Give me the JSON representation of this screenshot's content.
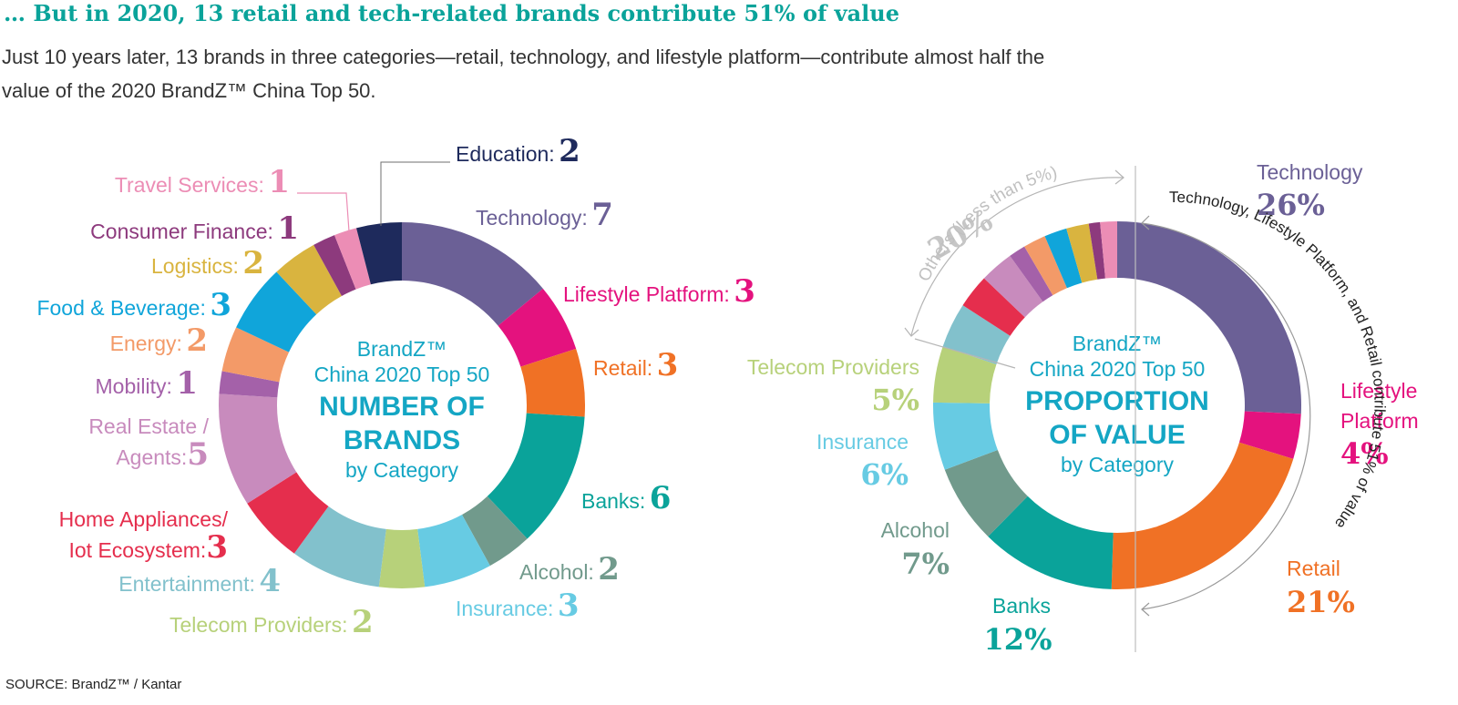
{
  "header": {
    "title": "… But in 2020, 13 retail and tech-related brands contribute 51% of value",
    "subtitle": "Just 10 years later, 13 brands in three categories—retail, technology, and lifestyle platform—contribute almost half the value of the 2020 BrandZ™ China Top 50."
  },
  "footer": {
    "source": "SOURCE: BrandZ™ / Kantar"
  },
  "chart_data": [
    {
      "type": "pie",
      "center": {
        "line1": "BrandZ™",
        "line2": "China 2020 Top 50",
        "line3": "NUMBER OF",
        "line4": "BRANDS",
        "line5": "by Category"
      },
      "series": [
        {
          "name": "Technology",
          "value": 7,
          "label": "Technology:",
          "display": "7",
          "color": "#6b6096"
        },
        {
          "name": "Lifestyle Platform",
          "value": 3,
          "label": "Lifestyle Platform:",
          "display": "3",
          "color": "#e4127e"
        },
        {
          "name": "Retail",
          "value": 3,
          "label": "Retail:",
          "display": "3",
          "color": "#f07125"
        },
        {
          "name": "Banks",
          "value": 6,
          "label": "Banks:",
          "display": "6",
          "color": "#0aa39a"
        },
        {
          "name": "Alcohol",
          "value": 2,
          "label": "Alcohol:",
          "display": "2",
          "color": "#719a8c"
        },
        {
          "name": "Insurance",
          "value": 3,
          "label": "Insurance:",
          "display": "3",
          "color": "#67cbe3"
        },
        {
          "name": "Telecom Providers",
          "value": 2,
          "label": "Telecom Providers:",
          "display": "2",
          "color": "#b7d17a"
        },
        {
          "name": "Entertainment",
          "value": 4,
          "label": "Entertainment:",
          "display": "4",
          "color": "#82c1cc"
        },
        {
          "name": "Home Appliances/ Iot Ecosystem",
          "value": 3,
          "label": "Home Appliances/",
          "label2": "Iot Ecosystem:",
          "display": "3",
          "color": "#e52e4d"
        },
        {
          "name": "Real Estate / Agents",
          "value": 5,
          "label": "Real Estate /",
          "label2": "Agents:",
          "display": "5",
          "color": "#c88bbd"
        },
        {
          "name": "Mobility",
          "value": 1,
          "label": "Mobility:",
          "display": "1",
          "color": "#a461a9"
        },
        {
          "name": "Energy",
          "value": 2,
          "label": "Energy:",
          "display": "2",
          "color": "#f39a68"
        },
        {
          "name": "Food & Beverage",
          "value": 3,
          "label": "Food & Beverage:",
          "display": "3",
          "color": "#10a5da"
        },
        {
          "name": "Logistics",
          "value": 2,
          "label": "Logistics:",
          "display": "2",
          "color": "#d9b43f"
        },
        {
          "name": "Consumer Finance",
          "value": 1,
          "label": "Consumer Finance:",
          "display": "1",
          "color": "#8d3a7d"
        },
        {
          "name": "Travel Services",
          "value": 1,
          "label": "Travel Services:",
          "display": "1",
          "color": "#ec8db5"
        },
        {
          "name": "Education",
          "value": 2,
          "label": "Education:",
          "display": "2",
          "color": "#1e2a5c"
        }
      ]
    },
    {
      "type": "pie",
      "center": {
        "line1": "BrandZ™",
        "line2": "China 2020 Top 50",
        "line3": "PROPORTION",
        "line4": "OF VALUE",
        "line5": "by Category"
      },
      "series": [
        {
          "name": "Technology",
          "value": 26,
          "label": "Technology",
          "display": "26%",
          "color": "#6b6096"
        },
        {
          "name": "Lifestyle Platform",
          "value": 4,
          "label": "Lifestyle",
          "label2": "Platform",
          "display": "4%",
          "color": "#e4127e"
        },
        {
          "name": "Retail",
          "value": 21,
          "label": "Retail",
          "display": "21%",
          "color": "#f07125"
        },
        {
          "name": "Banks",
          "value": 12,
          "label": "Banks",
          "display": "12%",
          "color": "#0aa39a"
        },
        {
          "name": "Alcohol",
          "value": 7,
          "label": "Alcohol",
          "display": "7%",
          "color": "#719a8c"
        },
        {
          "name": "Insurance",
          "value": 6,
          "label": "Insurance",
          "display": "6%",
          "color": "#67cbe3"
        },
        {
          "name": "Telecom Providers",
          "value": 5,
          "label": "Telecom Providers",
          "display": "5%",
          "color": "#b7d17a"
        },
        {
          "name": "Entertainment",
          "value": 4,
          "color": "#82c1cc"
        },
        {
          "name": "Home Appliances/Iot Ecosystem",
          "value": 3,
          "color": "#e52e4d"
        },
        {
          "name": "Real Estate/Agents",
          "value": 3,
          "color": "#c88bbd"
        },
        {
          "name": "Mobility",
          "value": 1.5,
          "color": "#a461a9"
        },
        {
          "name": "Energy",
          "value": 2,
          "color": "#f39a68"
        },
        {
          "name": "Food & Beverage",
          "value": 2,
          "color": "#10a5da"
        },
        {
          "name": "Logistics",
          "value": 2,
          "color": "#d9b43f"
        },
        {
          "name": "Consumer Finance",
          "value": 1,
          "color": "#8d3a7d"
        },
        {
          "name": "Travel Services",
          "value": 1.5,
          "color": "#ec8db5"
        }
      ],
      "annotations": {
        "others_pct": "20%",
        "others_text": "Others (Less than 5%)",
        "combined_text": "Technology, Lifestyle Platform, and Retail contribute 51% of value"
      }
    }
  ]
}
